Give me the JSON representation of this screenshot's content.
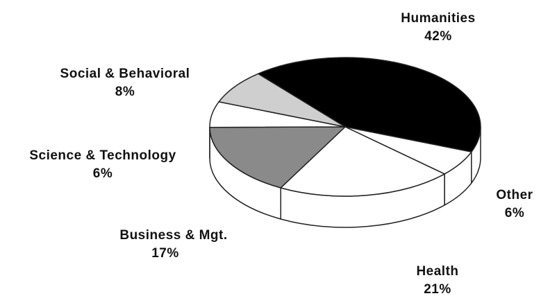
{
  "chart_data": {
    "type": "pie",
    "categories": [
      "Humanities",
      "Other",
      "Health",
      "Business & Mgt.",
      "Science & Technology",
      "Social & Behavioral"
    ],
    "values": [
      42,
      6,
      21,
      17,
      6,
      8
    ],
    "value_labels": [
      "42%",
      "6%",
      "21%",
      "17%",
      "6%",
      "8%"
    ],
    "colors": [
      "#000000",
      "#ffffff",
      "#ffffff",
      "#8a8a8a",
      "#ffffff",
      "#cfcfcf"
    ]
  }
}
